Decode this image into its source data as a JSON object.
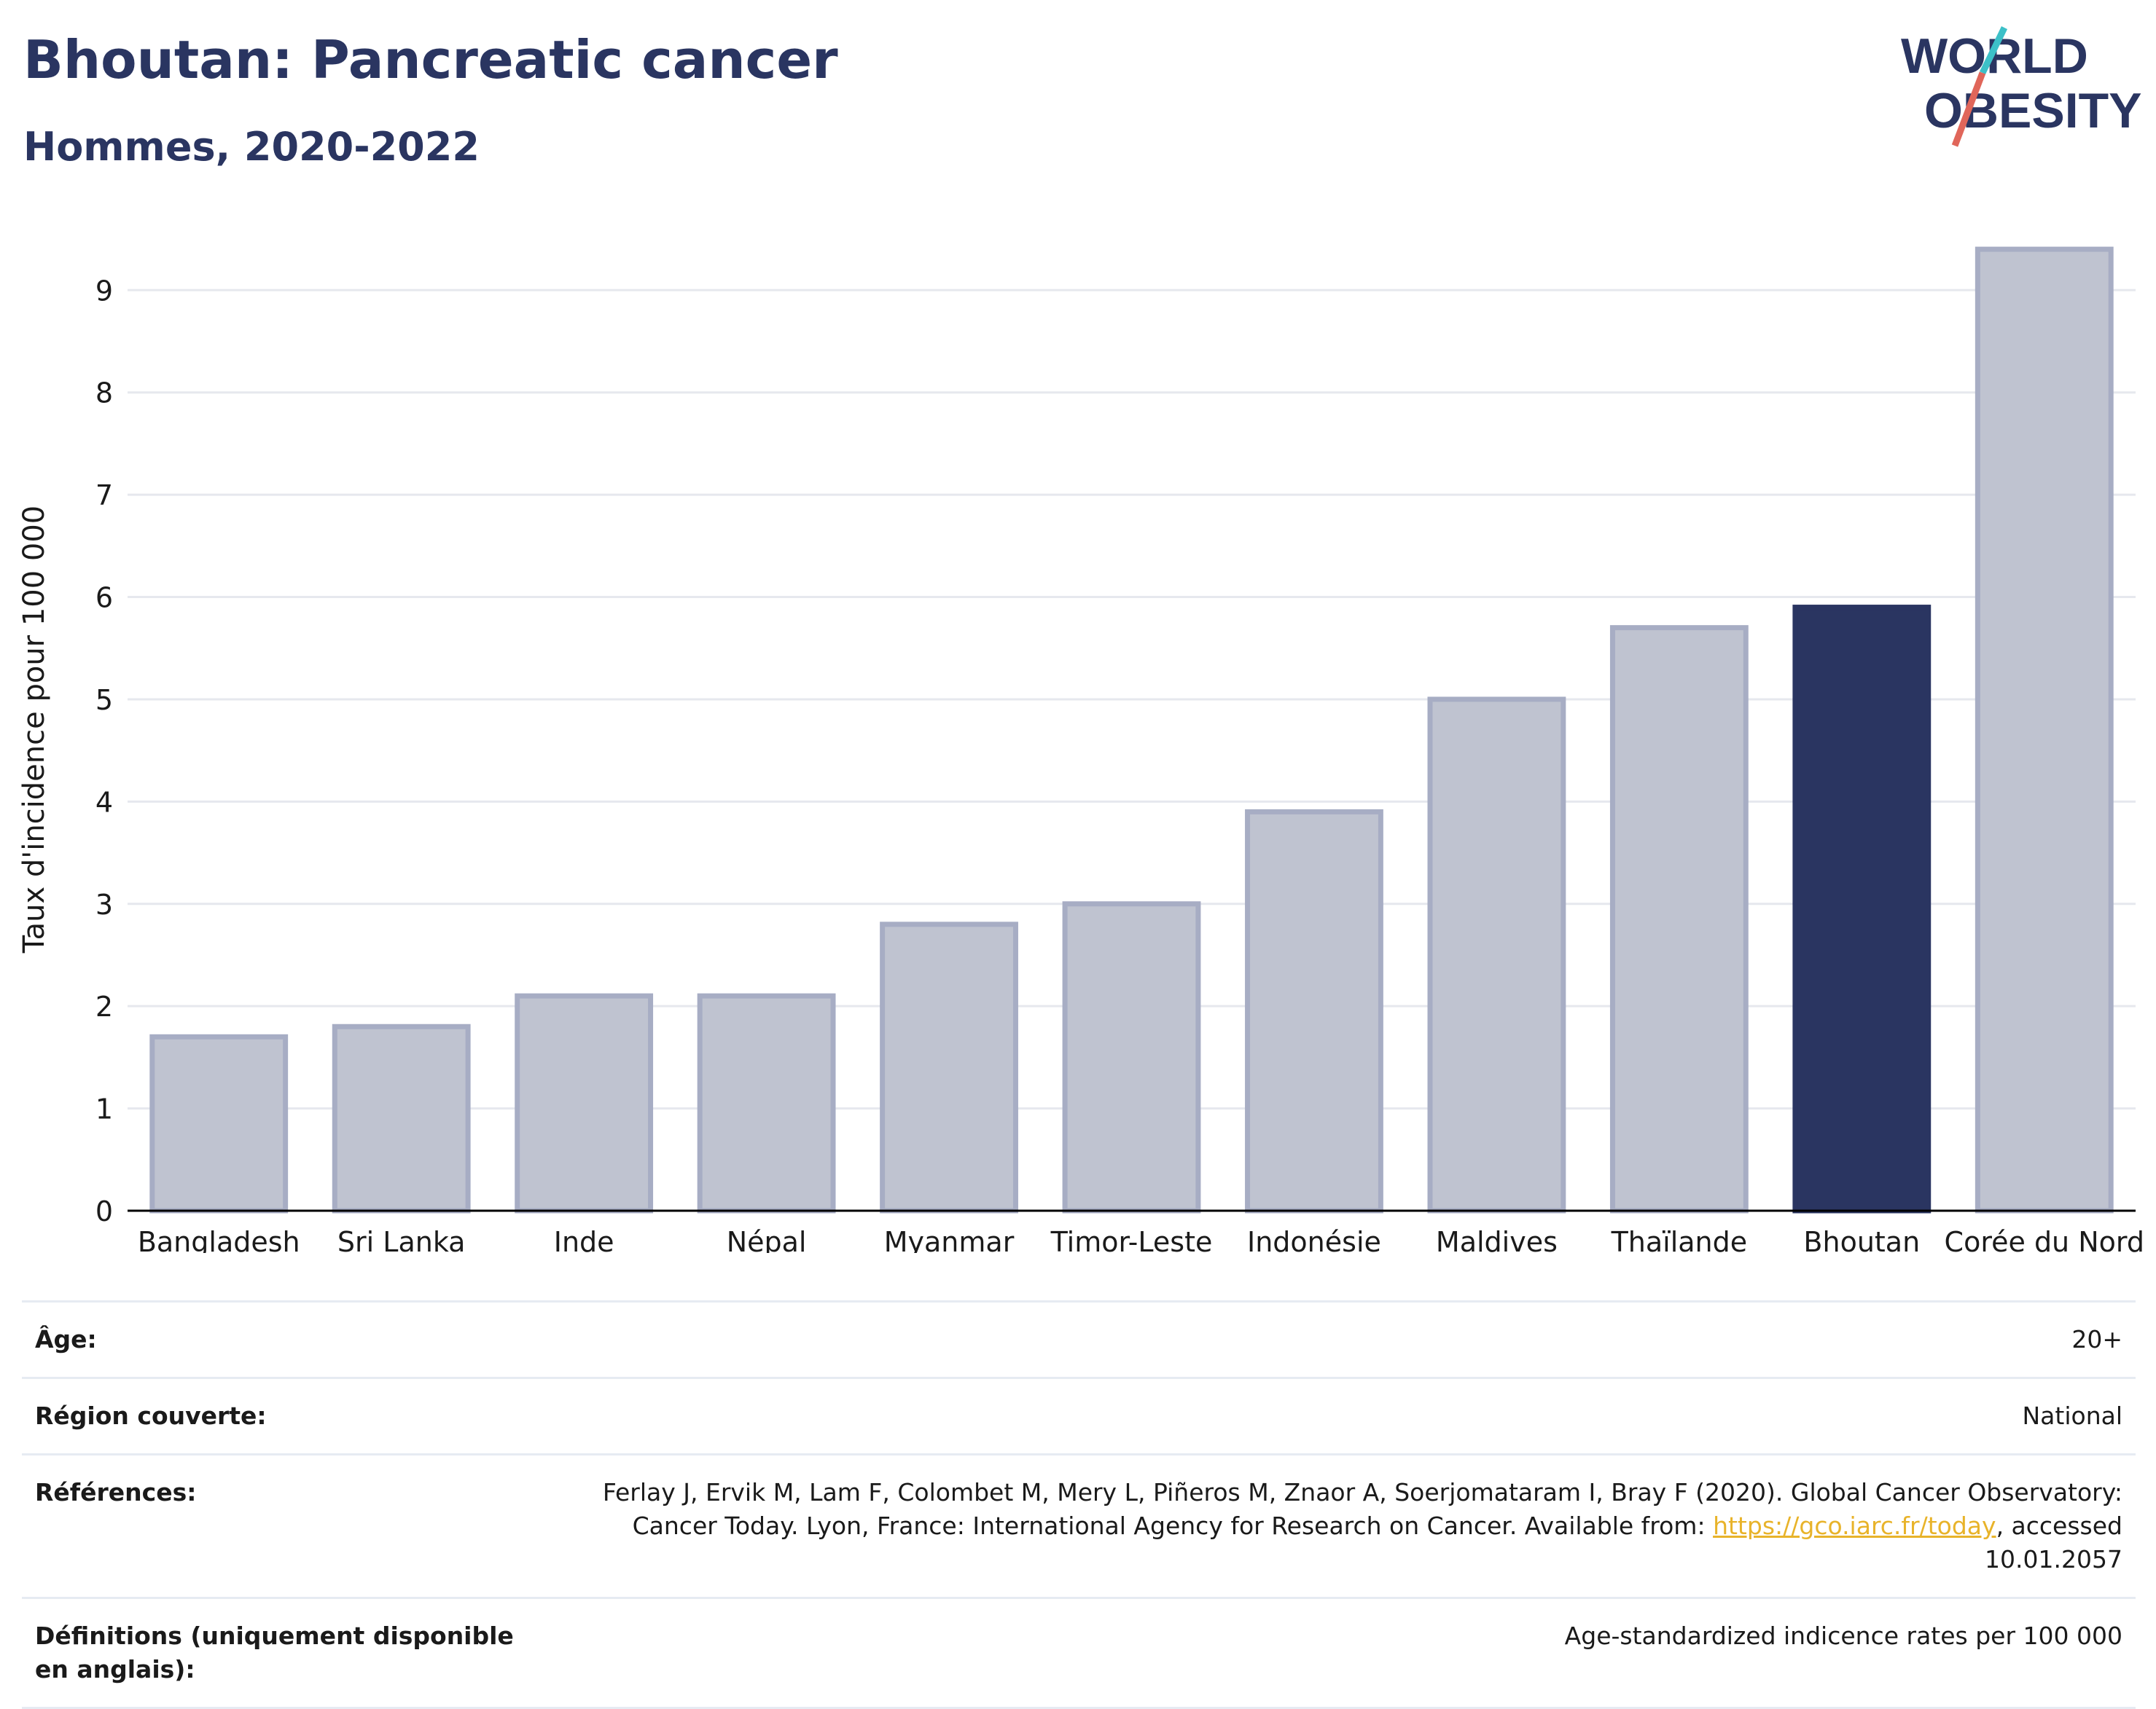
{
  "header": {
    "title": "Bhoutan: Pancreatic cancer",
    "subtitle": "Hommes, 2020-2022"
  },
  "logo": {
    "line1": "WORLD",
    "line2": "OBESITY",
    "colors": {
      "text": "#2a3561",
      "slash_top": "#3cc0c8",
      "slash_bottom": "#e0665a"
    }
  },
  "colors": {
    "bar": "#bfc3d0",
    "bar_border": "#a7adc4",
    "highlight": "#2a3561",
    "grid": "#e6e8ee",
    "axis": "#000000"
  },
  "chart_data": {
    "type": "bar",
    "title": "",
    "xlabel": "",
    "ylabel": "Taux d'incidence pour 100 000",
    "ylim": [
      0,
      9.7
    ],
    "yticks": [
      0,
      1,
      2,
      3,
      4,
      5,
      6,
      7,
      8,
      9
    ],
    "grid": true,
    "categories": [
      "Bangladesh",
      "Sri Lanka",
      "Inde",
      "Népal",
      "Myanmar",
      "Timor-Leste",
      "Indonésie",
      "Maldives",
      "Thaïlande",
      "Bhoutan",
      "Corée du Nord"
    ],
    "values": [
      1.7,
      1.8,
      2.1,
      2.1,
      2.8,
      3.0,
      3.9,
      5.0,
      5.7,
      5.9,
      9.4
    ],
    "highlight": "Bhoutan"
  },
  "meta": [
    {
      "key": "Âge:",
      "value": "20+"
    },
    {
      "key": "Région couverte:",
      "value": "National"
    },
    {
      "key": "Références:",
      "value_pre": "Ferlay J, Ervik M, Lam F, Colombet M, Mery L, Piñeros M, Znaor A, Soerjomataram I, Bray F (2020). Global Cancer Observatory: Cancer Today. Lyon, France: International Agency for Research on Cancer. Available from: ",
      "link": "https://gco.iarc.fr/today",
      "value_post": ", accessed 10.01.2057"
    },
    {
      "key": "Définitions (uniquement disponible en anglais):",
      "value": "Age-standardized indicence rates per 100 000"
    }
  ]
}
